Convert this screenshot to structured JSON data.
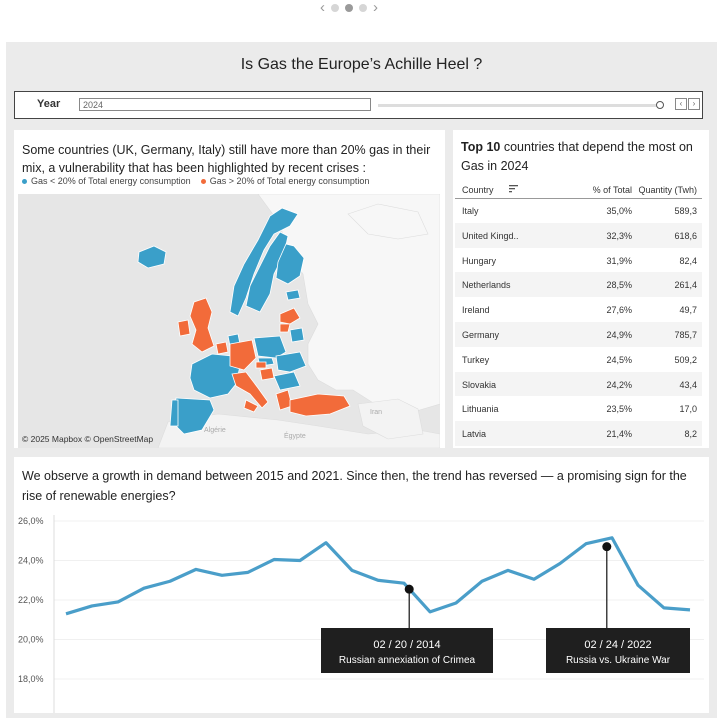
{
  "pager": {
    "prev": "‹",
    "next": "›",
    "dots": 3,
    "active": 1
  },
  "title": "Is Gas the Europe’s Achille Heel ?",
  "filter": {
    "label": "Year",
    "value": "2024",
    "step_prev": "‹",
    "step_next": "›"
  },
  "map": {
    "heading": "Some countries (UK, Germany, Italy) still have more than 20% gas in their mix, a vulnerability that has been highlighted by recent crises :",
    "legend": [
      {
        "label": "Gas < 20%  of Total energy consumption",
        "color": "#3a9fc9"
      },
      {
        "label": "Gas > 20% of Total energy consumption",
        "color": "#f26b3a"
      }
    ],
    "place_labels": [
      "Iran",
      "Algérie",
      "Égypte"
    ],
    "credit": "© 2025 Mapbox  © OpenStreetMap"
  },
  "table": {
    "title_bold": "Top 10",
    "title_rest": " countries that depend the most on Gas in 2024",
    "columns": [
      "Country",
      "% of Total",
      "Quantity (Twh)"
    ],
    "rows": [
      [
        "Italy",
        "35,0%",
        "589,3"
      ],
      [
        "United Kingd..",
        "32,3%",
        "618,6"
      ],
      [
        "Hungary",
        "31,9%",
        "82,4"
      ],
      [
        "Netherlands",
        "28,5%",
        "261,4"
      ],
      [
        "Ireland",
        "27,6%",
        "49,7"
      ],
      [
        "Germany",
        "24,9%",
        "785,7"
      ],
      [
        "Turkey",
        "24,5%",
        "509,2"
      ],
      [
        "Slovakia",
        "24,2%",
        "43,4"
      ],
      [
        "Lithuania",
        "23,5%",
        "17,0"
      ],
      [
        "Latvia",
        "21,4%",
        "8,2"
      ]
    ]
  },
  "chart_data": {
    "type": "line",
    "title": "We observe a growth in demand between 2015 and 2021. Since then, the trend has reversed — a promising sign for the rise of renewable energies?",
    "ylim": [
      18,
      26
    ],
    "yticks": [
      "26,0%",
      "24,0%",
      "22,0%",
      "20,0%",
      "18,0%"
    ],
    "ytick_values": [
      26,
      24,
      22,
      20,
      18
    ],
    "series": [
      {
        "values": [
          21.3,
          21.7,
          21.9,
          22.6,
          22.95,
          23.55,
          23.25,
          23.4,
          24.05,
          24.0,
          24.9,
          23.5,
          23.0,
          22.85,
          21.4,
          21.85,
          22.95,
          23.5,
          23.05,
          23.85,
          24.85,
          25.15,
          22.75,
          21.6,
          21.5
        ]
      }
    ],
    "color": "#4a9ec9",
    "annotations": [
      {
        "index": 13.2,
        "value": 22.55,
        "date": "02 / 20 / 2014",
        "text": "Russian annexiation of Crimea"
      },
      {
        "index": 20.8,
        "value": 24.7,
        "date": "02 / 24 / 2022",
        "text": "Russia vs. Ukraine War"
      }
    ]
  }
}
